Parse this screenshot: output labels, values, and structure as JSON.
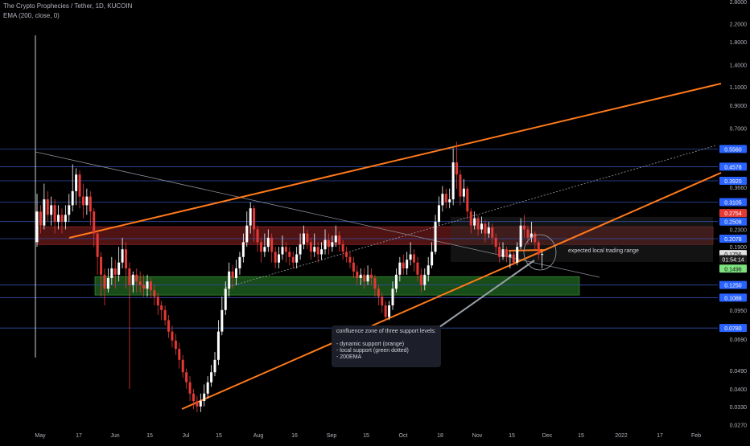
{
  "header": {
    "symbol": "The Crypto Prophecies / Tether, 1D, KUCOIN",
    "indicator": "EMA (200, close, 0)"
  },
  "annotations": {
    "range_label": "expected local trading range",
    "note_lines": [
      "confluence zone of three support levels:",
      "",
      "- dynamic support (orange)",
      "- local support (green dotted)",
      "- 200EMA"
    ]
  },
  "colors": {
    "background": "#000000",
    "up": "#ffffff",
    "down": "#e53935",
    "trend": "#ff7a1a",
    "level": "#2f4fa8",
    "resistance_zone": "#6b1a1a",
    "support_zone": "#1e5f1e",
    "axis_text": "#b2b5be"
  },
  "chart_data": {
    "type": "candlestick",
    "title": "The Crypto Prophecies / Tether, 1D, KUCOIN",
    "scale": "log",
    "ylim": [
      0.0255,
      2.85
    ],
    "price_ticks": [
      2.8,
      2.2,
      1.8,
      1.4,
      1.1,
      0.9,
      0.7,
      0.366,
      0.23,
      0.19,
      0.095,
      0.069,
      0.049,
      0.04,
      0.033,
      0.027
    ],
    "price_tick_labels": [
      "2.8000",
      "2.2000",
      "1.8000",
      "1.4000",
      "1.1000",
      "0.9000",
      "0.7000",
      "0.3660",
      "0.2300",
      "0.1900",
      "0.0950",
      "0.0690",
      "0.0490",
      "0.0400",
      "0.0330",
      "0.0270"
    ],
    "time_labels": [
      "May",
      "17",
      "Jun",
      "15",
      "Jul",
      "15",
      "Aug",
      "16",
      "Sep",
      "15",
      "Oct",
      "18",
      "Nov",
      "15",
      "Dec",
      "15",
      "2022",
      "17",
      "Feb"
    ],
    "levels": [
      0.556,
      0.4578,
      0.392,
      0.3105,
      0.2508,
      0.2078,
      0.125,
      0.1088,
      0.078
    ],
    "level_labels": [
      "0.5560",
      "0.4578",
      "0.3920",
      "0.3105",
      "0.2508",
      "0.2078",
      "0.1250",
      "0.1088",
      "0.0780"
    ],
    "price_tags": [
      {
        "label": "0.5560",
        "value": 0.556,
        "color": "#2962ff"
      },
      {
        "label": "0.4578",
        "value": 0.4578,
        "color": "#2962ff"
      },
      {
        "label": "0.3920",
        "value": 0.392,
        "color": "#2962ff"
      },
      {
        "label": "0.3105",
        "value": 0.3105,
        "color": "#2962ff"
      },
      {
        "label": "0.2754",
        "value": 0.2754,
        "color": "#e53935"
      },
      {
        "label": "0.2508",
        "value": 0.2508,
        "color": "#2962ff"
      },
      {
        "label": "0.2078",
        "value": 0.2078,
        "color": "#2962ff"
      },
      {
        "label": "0.1756",
        "value": 0.1756,
        "color": "#e0e0e0"
      },
      {
        "label": "01:54:14",
        "value": 0.166,
        "color": "#1a1a1a"
      },
      {
        "label": "0.1496",
        "value": 0.1496,
        "color": "#7ee27e"
      },
      {
        "label": "0.1250",
        "value": 0.125,
        "color": "#2962ff"
      },
      {
        "label": "0.1088",
        "value": 0.1088,
        "color": "#2962ff"
      },
      {
        "label": "0.0780",
        "value": 0.078,
        "color": "#2962ff"
      }
    ],
    "resistance_zone": [
      0.195,
      0.237
    ],
    "support_zone": [
      0.112,
      0.137
    ],
    "trading_range_box": [
      0.161,
      0.264
    ],
    "candles": [
      [
        0.2,
        0.28,
        0.34,
        0.19
      ],
      [
        0.28,
        0.24,
        0.3,
        0.22
      ],
      [
        0.24,
        0.32,
        0.38,
        0.23
      ],
      [
        0.32,
        0.27,
        0.35,
        0.25
      ],
      [
        0.27,
        0.3,
        0.33,
        0.24
      ],
      [
        0.3,
        0.25,
        0.32,
        0.22
      ],
      [
        0.25,
        0.27,
        0.3,
        0.23
      ],
      [
        0.27,
        0.25,
        0.29,
        0.22
      ],
      [
        0.25,
        0.27,
        0.3,
        0.23
      ],
      [
        0.27,
        0.3,
        0.34,
        0.25
      ],
      [
        0.3,
        0.35,
        0.47,
        0.28
      ],
      [
        0.35,
        0.42,
        0.45,
        0.3
      ],
      [
        0.42,
        0.33,
        0.44,
        0.29
      ],
      [
        0.33,
        0.3,
        0.38,
        0.26
      ],
      [
        0.3,
        0.33,
        0.36,
        0.27
      ],
      [
        0.33,
        0.28,
        0.35,
        0.24
      ],
      [
        0.28,
        0.22,
        0.29,
        0.19
      ],
      [
        0.22,
        0.17,
        0.23,
        0.14
      ],
      [
        0.17,
        0.14,
        0.18,
        0.11
      ],
      [
        0.14,
        0.12,
        0.15,
        0.1
      ],
      [
        0.12,
        0.135,
        0.15,
        0.115
      ],
      [
        0.135,
        0.15,
        0.17,
        0.125
      ],
      [
        0.15,
        0.14,
        0.165,
        0.12
      ],
      [
        0.14,
        0.16,
        0.19,
        0.13
      ],
      [
        0.16,
        0.185,
        0.21,
        0.15
      ],
      [
        0.185,
        0.15,
        0.2,
        0.12
      ],
      [
        0.15,
        0.125,
        0.16,
        0.04
      ],
      [
        0.125,
        0.14,
        0.145,
        0.115
      ],
      [
        0.14,
        0.13,
        0.15,
        0.115
      ],
      [
        0.13,
        0.125,
        0.145,
        0.115
      ],
      [
        0.125,
        0.12,
        0.14,
        0.11
      ],
      [
        0.12,
        0.13,
        0.14,
        0.11
      ],
      [
        0.13,
        0.118,
        0.135,
        0.108
      ],
      [
        0.118,
        0.11,
        0.125,
        0.1
      ],
      [
        0.11,
        0.1,
        0.115,
        0.09
      ],
      [
        0.1,
        0.095,
        0.105,
        0.085
      ],
      [
        0.095,
        0.085,
        0.1,
        0.08
      ],
      [
        0.085,
        0.075,
        0.09,
        0.07
      ],
      [
        0.075,
        0.068,
        0.08,
        0.063
      ],
      [
        0.068,
        0.062,
        0.073,
        0.058
      ],
      [
        0.062,
        0.055,
        0.066,
        0.05
      ],
      [
        0.055,
        0.048,
        0.058,
        0.045
      ],
      [
        0.048,
        0.043,
        0.05,
        0.04
      ],
      [
        0.043,
        0.038,
        0.046,
        0.035
      ],
      [
        0.038,
        0.035,
        0.04,
        0.032
      ],
      [
        0.035,
        0.033,
        0.037,
        0.031
      ],
      [
        0.033,
        0.035,
        0.038,
        0.031
      ],
      [
        0.035,
        0.038,
        0.042,
        0.033
      ],
      [
        0.038,
        0.043,
        0.046,
        0.036
      ],
      [
        0.043,
        0.048,
        0.052,
        0.041
      ],
      [
        0.048,
        0.055,
        0.06,
        0.046
      ],
      [
        0.055,
        0.075,
        0.085,
        0.052
      ],
      [
        0.075,
        0.095,
        0.11,
        0.072
      ],
      [
        0.095,
        0.12,
        0.13,
        0.09
      ],
      [
        0.12,
        0.145,
        0.16,
        0.11
      ],
      [
        0.145,
        0.135,
        0.155,
        0.12
      ],
      [
        0.135,
        0.15,
        0.165,
        0.125
      ],
      [
        0.15,
        0.17,
        0.18,
        0.14
      ],
      [
        0.17,
        0.2,
        0.22,
        0.16
      ],
      [
        0.2,
        0.24,
        0.28,
        0.19
      ],
      [
        0.24,
        0.29,
        0.31,
        0.22
      ],
      [
        0.29,
        0.23,
        0.3,
        0.2
      ],
      [
        0.23,
        0.2,
        0.24,
        0.18
      ],
      [
        0.2,
        0.18,
        0.21,
        0.16
      ],
      [
        0.18,
        0.19,
        0.22,
        0.17
      ],
      [
        0.19,
        0.21,
        0.23,
        0.18
      ],
      [
        0.21,
        0.18,
        0.22,
        0.16
      ],
      [
        0.18,
        0.16,
        0.19,
        0.15
      ],
      [
        0.16,
        0.175,
        0.19,
        0.15
      ],
      [
        0.175,
        0.19,
        0.215,
        0.165
      ],
      [
        0.19,
        0.18,
        0.2,
        0.16
      ],
      [
        0.18,
        0.17,
        0.19,
        0.155
      ],
      [
        0.17,
        0.16,
        0.18,
        0.15
      ],
      [
        0.16,
        0.175,
        0.19,
        0.15
      ],
      [
        0.175,
        0.195,
        0.22,
        0.165
      ],
      [
        0.195,
        0.22,
        0.24,
        0.185
      ],
      [
        0.22,
        0.2,
        0.23,
        0.185
      ],
      [
        0.2,
        0.18,
        0.21,
        0.165
      ],
      [
        0.18,
        0.19,
        0.22,
        0.17
      ],
      [
        0.19,
        0.175,
        0.2,
        0.16
      ],
      [
        0.175,
        0.185,
        0.2,
        0.165
      ],
      [
        0.185,
        0.205,
        0.23,
        0.175
      ],
      [
        0.205,
        0.19,
        0.22,
        0.175
      ],
      [
        0.19,
        0.2,
        0.215,
        0.18
      ],
      [
        0.2,
        0.215,
        0.24,
        0.19
      ],
      [
        0.215,
        0.195,
        0.225,
        0.18
      ],
      [
        0.195,
        0.18,
        0.205,
        0.165
      ],
      [
        0.18,
        0.17,
        0.19,
        0.16
      ],
      [
        0.17,
        0.16,
        0.18,
        0.15
      ],
      [
        0.16,
        0.145,
        0.17,
        0.135
      ],
      [
        0.145,
        0.135,
        0.155,
        0.125
      ],
      [
        0.135,
        0.14,
        0.15,
        0.125
      ],
      [
        0.14,
        0.13,
        0.15,
        0.12
      ],
      [
        0.13,
        0.14,
        0.155,
        0.125
      ],
      [
        0.14,
        0.135,
        0.15,
        0.125
      ],
      [
        0.135,
        0.12,
        0.14,
        0.11
      ],
      [
        0.12,
        0.11,
        0.125,
        0.1
      ],
      [
        0.11,
        0.1,
        0.115,
        0.092
      ],
      [
        0.1,
        0.088,
        0.105,
        0.084
      ],
      [
        0.088,
        0.1,
        0.105,
        0.085
      ],
      [
        0.1,
        0.12,
        0.13,
        0.095
      ],
      [
        0.12,
        0.14,
        0.15,
        0.115
      ],
      [
        0.14,
        0.16,
        0.17,
        0.13
      ],
      [
        0.16,
        0.15,
        0.175,
        0.14
      ],
      [
        0.15,
        0.165,
        0.18,
        0.14
      ],
      [
        0.165,
        0.175,
        0.2,
        0.155
      ],
      [
        0.175,
        0.16,
        0.185,
        0.145
      ],
      [
        0.16,
        0.14,
        0.17,
        0.13
      ],
      [
        0.14,
        0.125,
        0.15,
        0.115
      ],
      [
        0.125,
        0.14,
        0.15,
        0.118
      ],
      [
        0.14,
        0.155,
        0.17,
        0.13
      ],
      [
        0.155,
        0.18,
        0.2,
        0.15
      ],
      [
        0.18,
        0.25,
        0.27,
        0.175
      ],
      [
        0.25,
        0.3,
        0.33,
        0.24
      ],
      [
        0.3,
        0.34,
        0.37,
        0.28
      ],
      [
        0.34,
        0.31,
        0.36,
        0.29
      ],
      [
        0.31,
        0.32,
        0.36,
        0.29
      ],
      [
        0.32,
        0.48,
        0.56,
        0.3
      ],
      [
        0.48,
        0.42,
        0.6,
        0.36
      ],
      [
        0.42,
        0.33,
        0.44,
        0.3
      ],
      [
        0.33,
        0.36,
        0.4,
        0.31
      ],
      [
        0.36,
        0.28,
        0.37,
        0.26
      ],
      [
        0.28,
        0.24,
        0.29,
        0.22
      ],
      [
        0.24,
        0.26,
        0.28,
        0.23
      ],
      [
        0.26,
        0.23,
        0.27,
        0.215
      ],
      [
        0.23,
        0.245,
        0.265,
        0.22
      ],
      [
        0.245,
        0.22,
        0.255,
        0.2
      ],
      [
        0.22,
        0.235,
        0.25,
        0.21
      ],
      [
        0.235,
        0.21,
        0.245,
        0.195
      ],
      [
        0.21,
        0.19,
        0.22,
        0.175
      ],
      [
        0.19,
        0.17,
        0.2,
        0.16
      ],
      [
        0.17,
        0.185,
        0.2,
        0.165
      ],
      [
        0.185,
        0.17,
        0.19,
        0.16
      ],
      [
        0.17,
        0.175,
        0.18,
        0.15
      ],
      [
        0.175,
        0.16,
        0.18,
        0.155
      ],
      [
        0.16,
        0.19,
        0.2,
        0.155
      ],
      [
        0.19,
        0.24,
        0.26,
        0.185
      ],
      [
        0.24,
        0.23,
        0.27,
        0.21
      ],
      [
        0.23,
        0.21,
        0.24,
        0.195
      ],
      [
        0.21,
        0.22,
        0.25,
        0.2
      ],
      [
        0.22,
        0.2,
        0.225,
        0.185
      ],
      [
        0.2,
        0.175,
        0.205,
        0.165
      ],
      [
        0.175,
        0.1756,
        0.18,
        0.15
      ]
    ]
  }
}
